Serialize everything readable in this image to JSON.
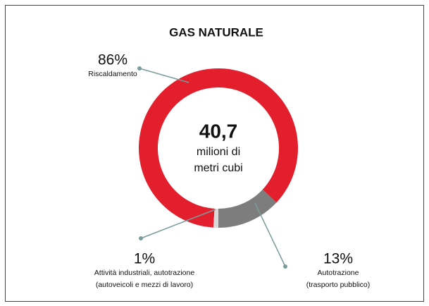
{
  "chart_data": {
    "type": "donut",
    "title": "GAS NATURALE",
    "center_text": [
      "40,7",
      "milioni di",
      "metri cubi"
    ],
    "categories": [
      [
        "Riscaldamento"
      ],
      [
        "Autotrazione",
        "(trasporto pubblico)"
      ],
      [
        "Attività industriali, autotrazione",
        "(autoveicoli e mezzi di lavoro)"
      ]
    ],
    "values": [
      86,
      13,
      1
    ],
    "value_labels": [
      "86%",
      "13%",
      "1%"
    ],
    "colors": [
      "#e31e2d",
      "#7d7d7d",
      "#d9d9d9"
    ]
  }
}
